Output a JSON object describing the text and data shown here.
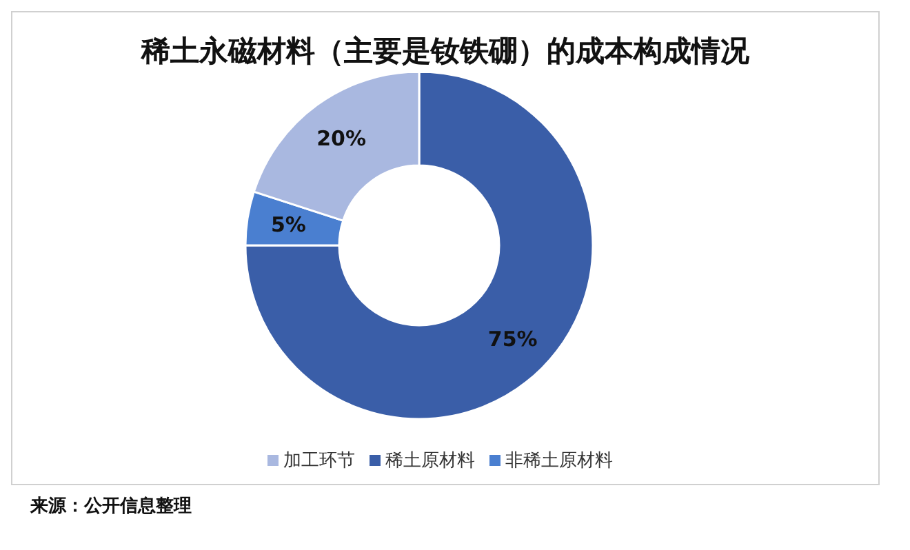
{
  "chart_data": {
    "type": "donut",
    "title": "稀土永磁材料（主要是钕铁硼）的成本构成情况",
    "categories": [
      "稀土原材料",
      "非稀土原材料",
      "加工环节"
    ],
    "values": [
      75,
      5,
      20
    ],
    "colors": [
      "#3a5ea8",
      "#4a7fd0",
      "#a9b8e0"
    ],
    "value_labels": [
      "75%",
      "5%",
      "20%"
    ],
    "legend": "bottom",
    "annotations": [
      "来源：公开信息整理"
    ]
  }
}
